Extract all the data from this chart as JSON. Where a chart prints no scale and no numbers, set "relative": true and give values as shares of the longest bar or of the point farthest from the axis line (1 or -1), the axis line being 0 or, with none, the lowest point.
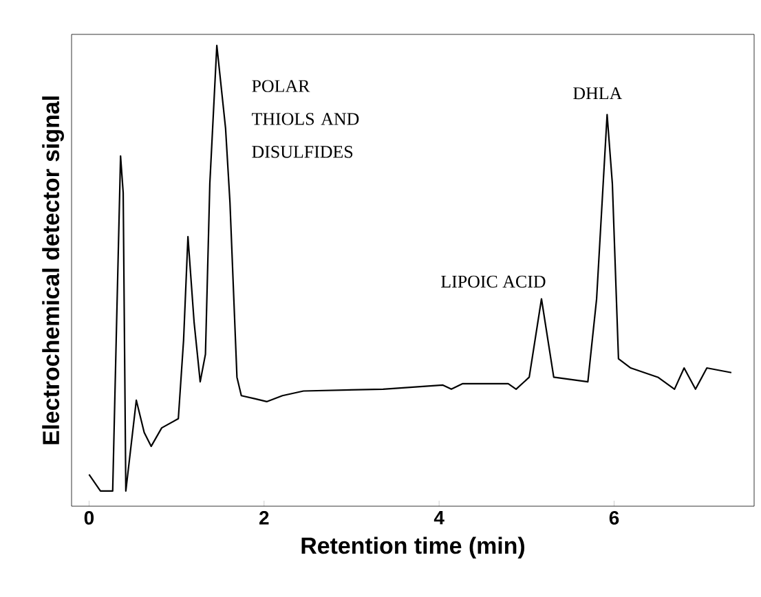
{
  "chart_data": {
    "type": "line",
    "relative": true,
    "xlabel": "Retention time (min)",
    "ylabel": "Electrochemical detector signal",
    "xlim": [
      -0.2,
      7.6
    ],
    "xticks": [
      0,
      2,
      4,
      6
    ],
    "color": "#000000",
    "marker": "none",
    "line_style": "solid",
    "grid": false,
    "x": [
      0.0,
      0.13,
      0.27,
      0.31,
      0.36,
      0.39,
      0.42,
      0.54,
      0.63,
      0.71,
      0.83,
      1.02,
      1.08,
      1.13,
      1.2,
      1.27,
      1.33,
      1.38,
      1.46,
      1.56,
      1.61,
      1.69,
      1.74,
      1.9,
      2.03,
      2.21,
      2.45,
      3.36,
      4.04,
      4.14,
      4.27,
      4.79,
      4.88,
      5.03,
      5.17,
      5.31,
      5.7,
      5.8,
      5.92,
      5.98,
      6.05,
      6.19,
      6.5,
      6.69,
      6.8,
      6.93,
      7.06,
      7.34
    ],
    "values": [
      0.069,
      0.033,
      0.033,
      0.36,
      0.76,
      0.68,
      0.033,
      0.23,
      0.16,
      0.13,
      0.17,
      0.19,
      0.36,
      0.585,
      0.4,
      0.27,
      0.33,
      0.7,
      1.0,
      0.82,
      0.66,
      0.28,
      0.24,
      0.233,
      0.227,
      0.24,
      0.25,
      0.254,
      0.263,
      0.254,
      0.266,
      0.266,
      0.254,
      0.28,
      0.45,
      0.28,
      0.27,
      0.45,
      0.85,
      0.7,
      0.32,
      0.3,
      0.28,
      0.254,
      0.3,
      0.254,
      0.3,
      0.29
    ],
    "annotations": [
      {
        "text": "POLAR THIOLS AND DISULFIDES",
        "x": 1.46,
        "y": 1.0
      },
      {
        "text": "LIPOIC ACID",
        "x": 5.17,
        "y": 0.45
      },
      {
        "text": "DHLA",
        "x": 5.92,
        "y": 0.85
      }
    ]
  }
}
